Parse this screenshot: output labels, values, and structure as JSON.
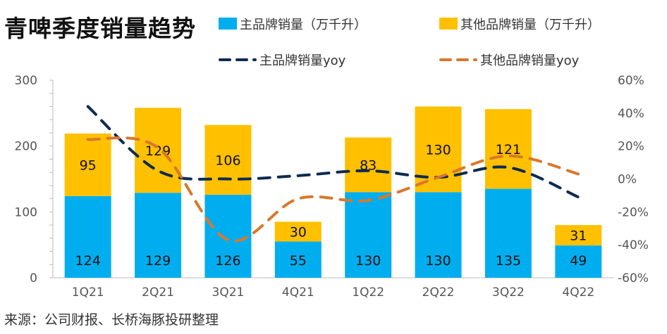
{
  "title": "青啤季度销量趋势",
  "source": "来源：公司财报、长桥海豚投研整理",
  "chart_data": {
    "type": "bar",
    "stacked": true,
    "categories": [
      "1Q21",
      "2Q21",
      "3Q21",
      "4Q21",
      "1Q22",
      "2Q22",
      "3Q22",
      "4Q22"
    ],
    "series": [
      {
        "name": "主品牌销量（万千升）",
        "type": "bar",
        "axis": "left",
        "color": "#00aeef",
        "values": [
          124,
          129,
          126,
          55,
          130,
          130,
          135,
          49
        ]
      },
      {
        "name": "其他品牌销量（万千升）",
        "type": "bar",
        "axis": "left",
        "color": "#ffc000",
        "values": [
          95,
          129,
          106,
          30,
          83,
          130,
          121,
          31
        ]
      },
      {
        "name": "主品牌销量yoy",
        "type": "line",
        "dash": true,
        "axis": "right",
        "color": "#0d2b52",
        "values": [
          44,
          5,
          0,
          2,
          5,
          1,
          7,
          -11
        ]
      },
      {
        "name": "其他品牌销量yoy",
        "type": "line",
        "dash": true,
        "axis": "right",
        "color": "#d9782c",
        "values": [
          24,
          19,
          -37,
          -12,
          -13,
          1,
          14,
          3
        ]
      }
    ],
    "ylim": [
      0,
      300
    ],
    "yticks": [
      "0",
      "100",
      "200",
      "300"
    ],
    "y2lim": [
      -60,
      60
    ],
    "y2ticks": [
      "-60%",
      "-40%",
      "-20%",
      "0%",
      "20%",
      "40%",
      "60%"
    ],
    "legend": "top",
    "grid": false
  }
}
